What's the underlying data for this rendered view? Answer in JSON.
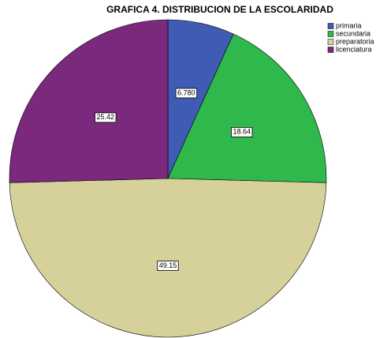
{
  "chart_data": {
    "type": "pie",
    "title": "GRAFICA 4. DISTRIBUCION DE LA ESCOLARIDAD",
    "categories": [
      "primaria",
      "secundaria",
      "preparatoria",
      "licenciatura"
    ],
    "values": [
      6.78,
      18.64,
      49.15,
      25.42
    ],
    "value_labels": [
      "6.780",
      "18.64",
      "49.15",
      "25.42"
    ],
    "colors": [
      "#3f5bb4",
      "#2fb84b",
      "#d6d09b",
      "#7b297c"
    ],
    "legend": "upper right"
  }
}
